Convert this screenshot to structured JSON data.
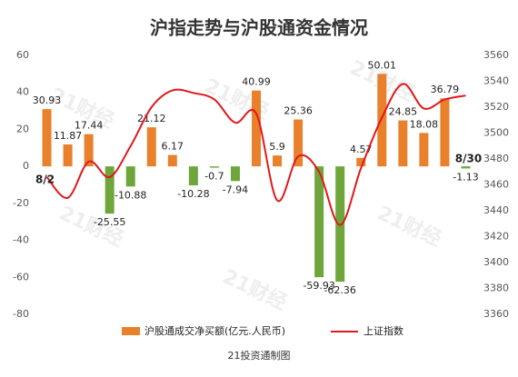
{
  "chart_data": {
    "type": "bar-line",
    "title": "沪指走势与沪股通资金情况",
    "categories": [
      "8/2",
      null,
      null,
      null,
      null,
      null,
      null,
      null,
      null,
      null,
      null,
      null,
      null,
      null,
      null,
      null,
      null,
      null,
      null,
      null,
      "8/30"
    ],
    "series": [
      {
        "name": "沪股通成交净买额(亿元.人民币)",
        "type": "bar",
        "color": "#e8802c",
        "negative_color": "#6ea63b",
        "values": [
          30.93,
          11.87,
          17.44,
          -25.55,
          -10.88,
          21.12,
          6.17,
          -10.28,
          -0.7,
          -7.94,
          40.99,
          5.9,
          25.36,
          -59.93,
          -62.36,
          4.57,
          50.01,
          24.85,
          18.08,
          36.79,
          -1.13
        ]
      },
      {
        "name": "上证指数",
        "type": "line",
        "axis": "y2",
        "color": "#e0181b",
        "values": [
          3466,
          3450,
          3478,
          3466,
          3490,
          3520,
          3533,
          3531,
          3526,
          3508,
          3515,
          3448,
          3482,
          3470,
          3429,
          3473,
          3512,
          3538,
          3519,
          3526,
          3529
        ]
      }
    ],
    "ylim": [
      -80,
      60
    ],
    "yticks": [
      -80,
      -60,
      -40,
      -20,
      0,
      20,
      40,
      60
    ],
    "y2lim": [
      3360,
      3560
    ],
    "y2ticks": [
      3360,
      3380,
      3400,
      3420,
      3440,
      3460,
      3480,
      3500,
      3520,
      3540,
      3560
    ],
    "source": "21投资通制图",
    "watermark": "21财经"
  }
}
